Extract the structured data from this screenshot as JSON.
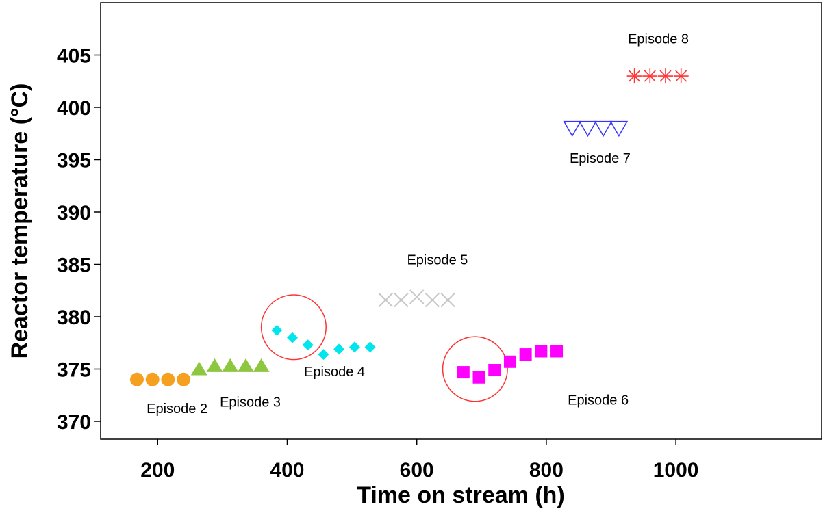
{
  "chart_data": {
    "type": "scatter",
    "xlabel": "Time on stream (h)",
    "ylabel": "Reactor temperature (°C)",
    "xlim": [
      112,
      1225
    ],
    "ylim": [
      368.3,
      410
    ],
    "xticks": [
      200,
      400,
      600,
      800,
      1000
    ],
    "yticks": [
      370,
      375,
      380,
      385,
      390,
      395,
      400,
      405
    ],
    "grid": false,
    "series": [
      {
        "marker": "circle",
        "color": "#f5a01f",
        "x": [
          168,
          192,
          216,
          240
        ],
        "y": [
          374,
          374,
          374,
          374
        ]
      },
      {
        "marker": "triangle-up",
        "color": "#8dc63f",
        "x": [
          264,
          288,
          312,
          336,
          360
        ],
        "y": [
          375,
          375.3,
          375.3,
          375.3,
          375.3
        ]
      },
      {
        "marker": "diamond",
        "color": "#00e5ee",
        "x": [
          384,
          408,
          432,
          456,
          480,
          504,
          528
        ],
        "y": [
          378.7,
          378,
          377.3,
          376.4,
          376.9,
          377.1,
          377.1
        ]
      },
      {
        "marker": "x",
        "color": "#c8c8c8",
        "x": [
          552,
          576,
          600,
          624,
          648
        ],
        "y": [
          381.6,
          381.6,
          381.9,
          381.6,
          381.6
        ]
      },
      {
        "marker": "square",
        "color": "#ff00ff",
        "x": [
          672,
          696,
          720,
          744,
          768,
          792,
          816
        ],
        "y": [
          374.7,
          374.2,
          374.9,
          375.7,
          376.4,
          376.7,
          376.7
        ]
      },
      {
        "marker": "triangle-down",
        "color": "#3333ff",
        "x": [
          840,
          864,
          888,
          912
        ],
        "y": [
          398,
          398,
          398,
          398
        ]
      },
      {
        "marker": "asterisk",
        "color": "#ff3333",
        "x": [
          936,
          960,
          984,
          1008
        ],
        "y": [
          403,
          403,
          403,
          403
        ]
      }
    ],
    "annotations": [
      {
        "text": "Episode 2",
        "x": 230,
        "y": 370.8
      },
      {
        "text": "Episode 3",
        "x": 343,
        "y": 371.4
      },
      {
        "text": "Episode 4",
        "x": 473,
        "y": 374.3
      },
      {
        "text": "Episode 5",
        "x": 632,
        "y": 385
      },
      {
        "text": "Episode 6",
        "x": 880,
        "y": 371.6
      },
      {
        "text": "Episode 7",
        "x": 883,
        "y": 394.7
      },
      {
        "text": "Episode 8",
        "x": 973,
        "y": 406.1
      }
    ],
    "highlight_circles": [
      {
        "x": 410,
        "y": 379,
        "rx": 50,
        "color": "#ff3333"
      },
      {
        "x": 690,
        "y": 375,
        "rx": 50,
        "color": "#ff3333"
      }
    ]
  }
}
